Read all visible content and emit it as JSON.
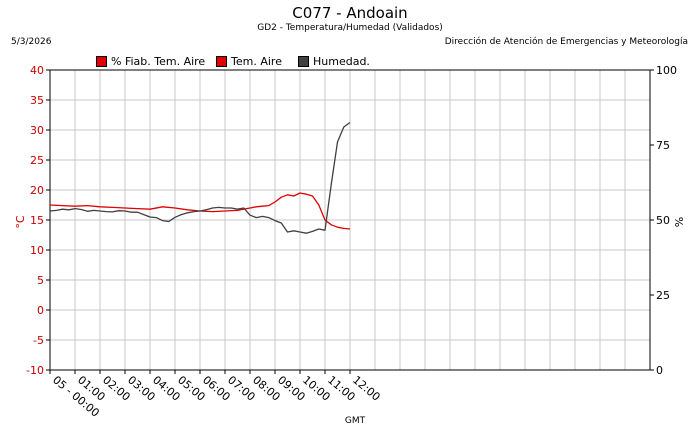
{
  "header": {
    "title": "C077 - Andoain",
    "subtitle": "GD2 - Temperatura/Humedad (Validados)",
    "date": "5/3/2026",
    "organization": "Dirección de Atención de Emergencias y Meteorología"
  },
  "legend": [
    {
      "label": "% Fiab. Tem. Aire",
      "color": "#e00000"
    },
    {
      "label": "Tem. Aire",
      "color": "#e00000"
    },
    {
      "label": "Humedad.",
      "color": "#404040"
    }
  ],
  "chart_data": {
    "type": "line",
    "xlabel": "GMT",
    "ylabel_left": "°C",
    "ylabel_right": "%",
    "ylim_left": [
      -10,
      40
    ],
    "ylim_right": [
      0,
      100
    ],
    "yticks_left": [
      -10,
      -5,
      0,
      5,
      10,
      15,
      20,
      25,
      30,
      35,
      40
    ],
    "yticks_right": [
      0,
      25,
      50,
      75,
      100
    ],
    "xlim_hours": [
      0,
      24
    ],
    "xticks": [
      "05 - 00:00",
      "01:00",
      "02:00",
      "03:00",
      "04:00",
      "05:00",
      "06:00",
      "07:00",
      "08:00",
      "09:00",
      "10:00",
      "11:00",
      "12:00"
    ],
    "grid": true,
    "series": [
      {
        "name": "Tem. Aire",
        "axis": "left",
        "color": "#e00000",
        "x": [
          0,
          0.5,
          1,
          1.5,
          2,
          2.5,
          3,
          3.5,
          4,
          4.5,
          5,
          5.5,
          6,
          6.5,
          7,
          7.5,
          8,
          8.25,
          8.5,
          8.75,
          9,
          9.25,
          9.5,
          9.75,
          10,
          10.25,
          10.5,
          10.75,
          11,
          11.25,
          11.5,
          11.75,
          12
        ],
        "y": [
          17.5,
          17.4,
          17.3,
          17.4,
          17.2,
          17.1,
          17.0,
          16.9,
          16.8,
          17.2,
          17.0,
          16.7,
          16.5,
          16.4,
          16.5,
          16.6,
          17.0,
          17.2,
          17.3,
          17.4,
          18.0,
          18.8,
          19.2,
          19.0,
          19.5,
          19.3,
          19.0,
          17.5,
          15.0,
          14.2,
          13.8,
          13.6,
          13.5
        ]
      },
      {
        "name": "Humedad.",
        "axis": "right",
        "color": "#404040",
        "x": [
          0,
          0.25,
          0.5,
          0.75,
          1,
          1.25,
          1.5,
          1.75,
          2,
          2.25,
          2.5,
          2.75,
          3,
          3.25,
          3.5,
          3.75,
          4,
          4.25,
          4.5,
          4.75,
          5,
          5.25,
          5.5,
          5.75,
          6,
          6.25,
          6.5,
          6.75,
          7,
          7.25,
          7.5,
          7.75,
          8,
          8.25,
          8.5,
          8.75,
          9,
          9.25,
          9.5,
          9.75,
          10,
          10.25,
          10.5,
          10.75,
          11,
          11.25,
          11.5,
          11.75,
          12
        ],
        "y": [
          53.0,
          53.2,
          53.6,
          53.4,
          53.8,
          53.5,
          52.9,
          53.2,
          53.0,
          52.8,
          52.7,
          53.1,
          53.0,
          52.6,
          52.6,
          51.8,
          51.0,
          50.8,
          49.8,
          49.5,
          50.9,
          51.8,
          52.4,
          52.8,
          53.0,
          53.4,
          54.0,
          54.2,
          54.0,
          54.0,
          53.6,
          54.0,
          51.6,
          50.8,
          51.2,
          50.8,
          49.8,
          49.0,
          46.0,
          46.4,
          46.0,
          45.6,
          46.2,
          47.0,
          46.6,
          62.0,
          76.0,
          81.0,
          82.5
        ]
      }
    ]
  }
}
